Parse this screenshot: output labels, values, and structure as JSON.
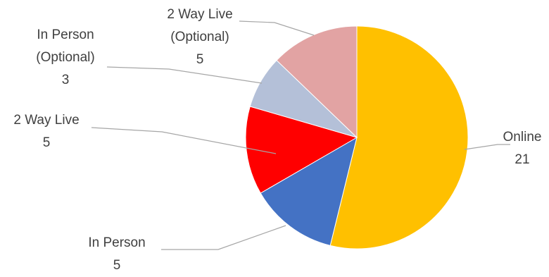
{
  "chart_data": {
    "type": "pie",
    "title": "",
    "legend": "none",
    "slices": [
      {
        "category": "Online",
        "value": 21,
        "color": "#FFC000",
        "label_lines": [
          "Online",
          "21"
        ]
      },
      {
        "category": "In Person",
        "value": 5,
        "color": "#4472C4",
        "label_lines": [
          "In Person",
          "5"
        ]
      },
      {
        "category": "2 Way Live",
        "value": 5,
        "color": "#FF0000",
        "label_lines": [
          "2 Way Live",
          "5"
        ]
      },
      {
        "category": "In Person (Optional)",
        "value": 3,
        "color": "#B4C0D8",
        "label_lines": [
          "In Person",
          "(Optional)",
          "3"
        ]
      },
      {
        "category": "2 Way Live (Optional)",
        "value": 5,
        "color": "#E2A3A3",
        "label_lines": [
          "2 Way Live",
          "(Optional)",
          "5"
        ]
      }
    ]
  }
}
